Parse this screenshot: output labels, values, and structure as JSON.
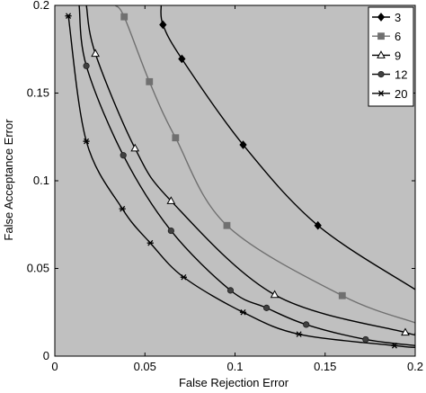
{
  "chart_data": {
    "type": "line",
    "xlabel": "False Rejection Error",
    "ylabel": "False Acceptance Error",
    "xlim": [
      0,
      0.2
    ],
    "ylim": [
      0,
      0.2
    ],
    "x_ticks": [
      0,
      0.05,
      0.1,
      0.15,
      0.2
    ],
    "y_ticks": [
      0,
      0.05,
      0.1,
      0.15,
      0.2
    ],
    "x_tick_labels": [
      "0",
      "0.05",
      "0.1",
      "0.15",
      "0.2"
    ],
    "y_tick_labels": [
      "0",
      "0.05",
      "0.1",
      "0.15",
      "0.2"
    ],
    "grid": false,
    "background": "#c0c0c0",
    "legend_position": "top-right",
    "series": [
      {
        "name": "3",
        "marker": "diamond",
        "color": "#000000",
        "x": [
          0.059,
          0.06,
          0.0705,
          0.1045,
          0.146,
          0.2
        ],
        "y": [
          0.2,
          0.189,
          0.1695,
          0.1205,
          0.0745,
          0.038
        ]
      },
      {
        "name": "6",
        "marker": "square",
        "color": "#707070",
        "x": [
          0.0335,
          0.0385,
          0.0525,
          0.067,
          0.0955,
          0.1595,
          0.2
        ],
        "y": [
          0.2,
          0.1935,
          0.1565,
          0.1245,
          0.0745,
          0.0345,
          0.019
        ]
      },
      {
        "name": "9",
        "marker": "triangle",
        "color": "#000000",
        "x": [
          0.0175,
          0.0225,
          0.0445,
          0.0645,
          0.122,
          0.1945,
          0.2
        ],
        "y": [
          0.2,
          0.1725,
          0.1185,
          0.0885,
          0.035,
          0.0135,
          0.013
        ]
      },
      {
        "name": "12",
        "marker": "circle",
        "color": "#000000",
        "x": [
          0.0135,
          0.0175,
          0.038,
          0.0645,
          0.0975,
          0.1175,
          0.1395,
          0.1725,
          0.2
        ],
        "y": [
          0.2,
          0.1655,
          0.1145,
          0.0715,
          0.0375,
          0.0275,
          0.018,
          0.0095,
          0.006
        ]
      },
      {
        "name": "20",
        "marker": "star",
        "color": "#000000",
        "x": [
          0.0075,
          0.0175,
          0.0375,
          0.053,
          0.0715,
          0.1045,
          0.1355,
          0.1885,
          0.2
        ],
        "y": [
          0.194,
          0.1225,
          0.084,
          0.0645,
          0.045,
          0.025,
          0.0125,
          0.006,
          0.005
        ]
      }
    ]
  }
}
